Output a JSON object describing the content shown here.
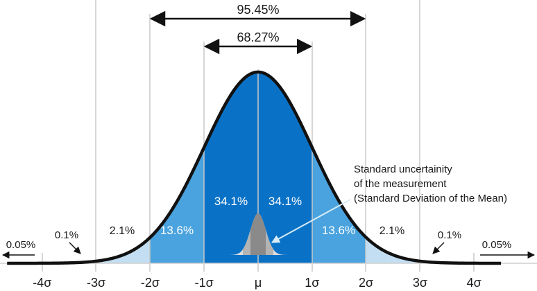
{
  "colors": {
    "core": "#0a72c6",
    "band2": "#4aa3de",
    "band3": "#c3def2",
    "curve": "#111111",
    "grid": "#c8c8c8",
    "inset_dark": "#8a8a8a",
    "inset_mid": "#b4b4b4",
    "inset_light": "#dcdcdc",
    "arrow_light": "#d8ecf8"
  },
  "ranges": {
    "two_sigma": "95.45%",
    "one_sigma": "68.27%"
  },
  "bands": {
    "left_core": "34.1%",
    "right_core": "34.1%",
    "left_mid": "13.6%",
    "right_mid": "13.6%",
    "left_outer": "2.1%",
    "right_outer": "2.1%",
    "left_tail": "0.1%",
    "right_tail": "0.1%",
    "left_extreme": "0.05%",
    "right_extreme": "0.05%"
  },
  "annotation": {
    "line1": "Standard uncertainity",
    "line2": "of the measurement",
    "line3": "(Standard Deviation of the Mean)"
  },
  "axis_labels": [
    "-4σ",
    "-3σ",
    "-2σ",
    "-1σ",
    "μ",
    "1σ",
    "2σ",
    "3σ",
    "4σ"
  ],
  "curve_shape": {
    "type": "normal",
    "x_range_sigma": [
      -4.65,
      4.5
    ],
    "peak_density": 0.3989
  }
}
